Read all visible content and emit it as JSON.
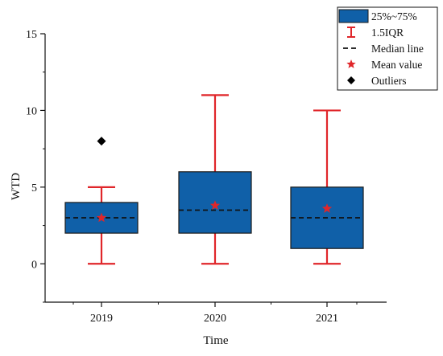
{
  "chart_data": {
    "type": "box",
    "xlabel": "Time",
    "ylabel": "WTD",
    "categories": [
      "2019",
      "2020",
      "2021"
    ],
    "ylim": [
      -2.5,
      15
    ],
    "yticks": [
      0,
      5,
      10,
      15
    ],
    "grid": false,
    "legend_position": "top-right",
    "boxes": [
      {
        "category": "2019",
        "whisker_low": 0,
        "q1": 2,
        "median": 3,
        "q3": 4,
        "whisker_high": 5,
        "mean": 3.0,
        "outliers": [
          8
        ]
      },
      {
        "category": "2020",
        "whisker_low": 0,
        "q1": 2,
        "median": 3.5,
        "q3": 6,
        "whisker_high": 11,
        "mean": 3.8,
        "outliers": []
      },
      {
        "category": "2021",
        "whisker_low": 0,
        "q1": 1,
        "median": 3,
        "q3": 5,
        "whisker_high": 10,
        "mean": 3.6,
        "outliers": []
      }
    ],
    "legend": [
      {
        "label": "25%~75%",
        "symbol": "box"
      },
      {
        "label": "1.5IQR",
        "symbol": "whisker"
      },
      {
        "label": "Median line",
        "symbol": "dashed-line"
      },
      {
        "label": "Mean value",
        "symbol": "star"
      },
      {
        "label": "Outliers",
        "symbol": "diamond"
      }
    ],
    "colors": {
      "box_fill": "#1060a8",
      "box_edge": "#1a1a1a",
      "whisker": "#e0262a",
      "median": "#111111",
      "mean": "#e0262a",
      "outlier": "#000000",
      "axis": "#111111"
    }
  }
}
